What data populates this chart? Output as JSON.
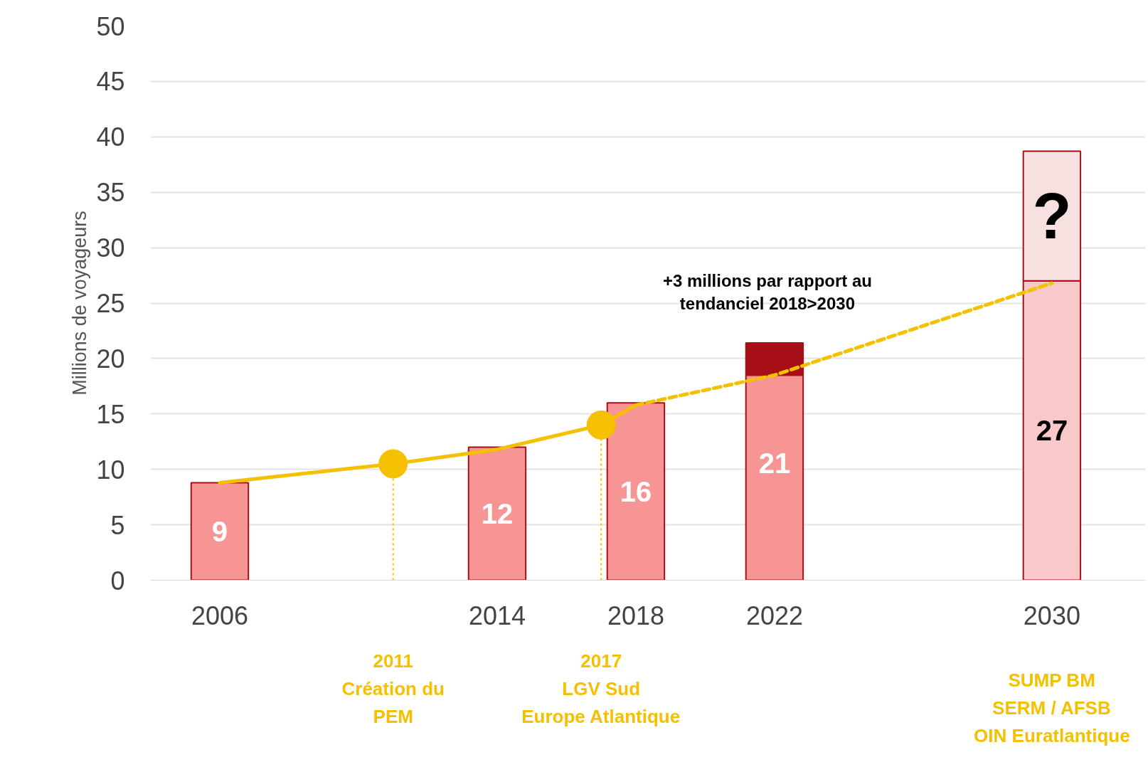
{
  "chart_data": {
    "type": "bar",
    "ylabel": "Millions de voyageurs",
    "x": [
      2006,
      2014,
      2018,
      2022,
      2030
    ],
    "stacked": true,
    "series": [
      {
        "colors": [
          "#f79494",
          "#f79494",
          "#f79494",
          "#f79494",
          "#f9c9c9"
        ],
        "values": [
          8.8,
          12,
          16,
          18.5,
          27
        ],
        "value_labels": [
          "9",
          "12",
          "16",
          null,
          "27"
        ]
      },
      {
        "colors": [
          "#a50f15",
          "#a50f15",
          "#a50f15",
          "#a50f15",
          "#f6e0e0"
        ],
        "values": [
          null,
          null,
          null,
          2.9,
          11.7
        ],
        "value_labels": [
          null,
          null,
          null,
          null,
          "?"
        ]
      },
      {
        "type": "line",
        "color": "#f5c000",
        "x": [
          2006,
          2011,
          2014,
          2017,
          2018
        ],
        "values": [
          8.8,
          10.5,
          11.8,
          14,
          15.8
        ],
        "line_style": "solid"
      },
      {
        "type": "line",
        "color": "#f5c000",
        "x": [
          2018,
          2022,
          2030
        ],
        "values": [
          15.8,
          18.5,
          26.8
        ],
        "line_style": "dashed"
      },
      {
        "type": "scatter",
        "color": "#f5c000",
        "x": [
          2011,
          2017
        ],
        "values": [
          10.5,
          14
        ],
        "marker": "circle"
      }
    ],
    "totals": [
      null,
      null,
      null,
      "21",
      null
    ],
    "xlim": [
      2004,
      2032.7
    ],
    "xticks": [
      2006,
      2014,
      2018,
      2022,
      2030
    ],
    "ylim": [
      0,
      50
    ],
    "yticks": [
      0,
      5,
      10,
      15,
      20,
      25,
      30,
      35,
      40,
      45,
      50
    ],
    "grid": "y",
    "ref_lines": [
      {
        "axis": "x",
        "value": 2011,
        "color": "#f5c000",
        "line_style": "dotted",
        "label": "2011\nCréation du\nPEM"
      },
      {
        "axis": "x",
        "value": 2017,
        "color": "#f5c000",
        "line_style": "dotted",
        "label": "2017\nLGV Sud\nEurope Atlantique"
      }
    ],
    "annotations": [
      "SUMP BM\nSERM / AFSB\nOIN Euratlantique",
      {
        "text": "+3 millions par rapport au\ntendanciel 2018>2030",
        "x": 2022,
        "y": 21.4
      }
    ]
  }
}
